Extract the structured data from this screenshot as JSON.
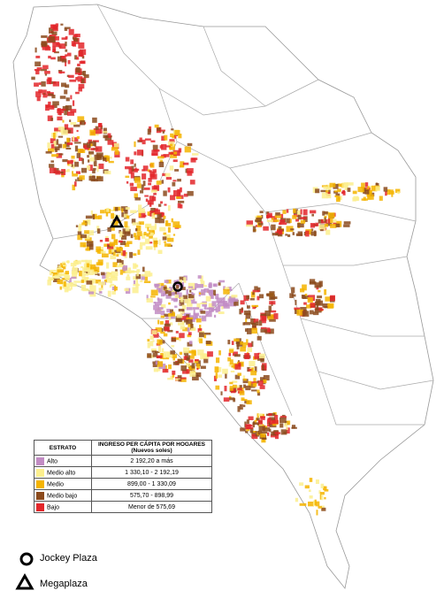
{
  "legend": {
    "header": {
      "stratum": "ESTRATO",
      "income": "INGRESO PER CÁPITA POR HOGARES (Nuevos soles)"
    },
    "rows": [
      {
        "name": "Alto",
        "range": "2 192,20 a más",
        "color": "#c28cc4"
      },
      {
        "name": "Medio alto",
        "range": "1 330,10 - 2 192,19",
        "color": "#fcef8e"
      },
      {
        "name": "Medio",
        "range": "899,00 - 1 330,09",
        "color": "#f5b400"
      },
      {
        "name": "Medio bajo",
        "range": "575,70 - 898,99",
        "color": "#8b4a1c"
      },
      {
        "name": "Bajo",
        "range": "Menor de 575,69",
        "color": "#e3262a"
      }
    ]
  },
  "markers": {
    "jockey": "Jockey Plaza",
    "megaplaza": "Megaplaza"
  }
}
